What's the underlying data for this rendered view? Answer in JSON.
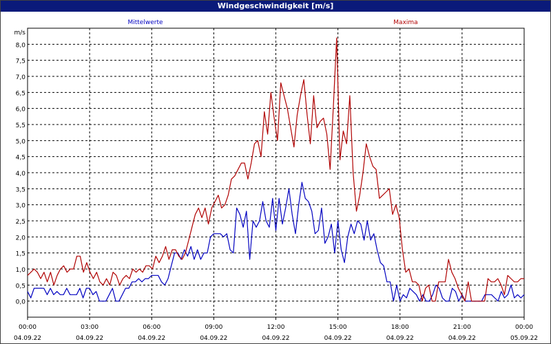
{
  "window": {
    "title": "Windgeschwindigkeit [m/s]"
  },
  "chart_data": {
    "type": "line",
    "title": "Windgeschwindigkeit [m/s]",
    "ylabel": "m/s",
    "ylim": [
      -0.5,
      8.5
    ],
    "yticks": [
      "0,0",
      "0,5",
      "1,0",
      "1,5",
      "2,0",
      "2,5",
      "3,0",
      "3,5",
      "4,0",
      "4,5",
      "5,0",
      "5,5",
      "6,0",
      "6,5",
      "7,0",
      "7,5",
      "8,0"
    ],
    "xlim": [
      0,
      24
    ],
    "xticks": [
      {
        "time": "00:00",
        "date": "04.09.22"
      },
      {
        "time": "03:00",
        "date": "04.09.22"
      },
      {
        "time": "06:00",
        "date": "04.09.22"
      },
      {
        "time": "09:00",
        "date": "04.09.22"
      },
      {
        "time": "12:00",
        "date": "04.09.22"
      },
      {
        "time": "15:00",
        "date": "04.09.22"
      },
      {
        "time": "18:00",
        "date": "04.09.22"
      },
      {
        "time": "21:00",
        "date": "04.09.22"
      },
      {
        "time": "00:00",
        "date": "05.09.22"
      }
    ],
    "grid": true,
    "series": [
      {
        "name": "Mittelwerte",
        "color": "#0000c0",
        "values": [
          0.3,
          0.1,
          0.4,
          0.4,
          0.4,
          0.4,
          0.2,
          0.4,
          0.2,
          0.3,
          0.2,
          0.2,
          0.4,
          0.2,
          0.2,
          0.2,
          0.4,
          0.1,
          0.4,
          0.4,
          0.2,
          0.3,
          0.0,
          0.0,
          0.0,
          0.2,
          0.4,
          0.0,
          0.0,
          0.2,
          0.4,
          0.4,
          0.6,
          0.6,
          0.7,
          0.6,
          0.7,
          0.7,
          0.8,
          0.8,
          0.8,
          0.6,
          0.5,
          0.7,
          1.1,
          1.5,
          1.5,
          1.3,
          1.6,
          1.4,
          1.7,
          1.3,
          1.6,
          1.3,
          1.5,
          1.5,
          2.0,
          2.1,
          2.1,
          2.1,
          2.0,
          2.1,
          1.6,
          1.5,
          2.9,
          2.7,
          2.3,
          2.8,
          1.3,
          2.5,
          2.3,
          2.5,
          3.1,
          2.5,
          2.3,
          3.2,
          2.2,
          3.2,
          2.4,
          2.9,
          3.5,
          2.7,
          2.1,
          3.0,
          3.7,
          3.2,
          3.1,
          2.8,
          2.1,
          2.2,
          2.9,
          1.8,
          2.0,
          2.4,
          1.5,
          2.5,
          1.6,
          1.2,
          2.0,
          2.4,
          2.1,
          2.5,
          2.4,
          1.9,
          2.5,
          1.9,
          2.1,
          1.6,
          1.2,
          1.1,
          0.6,
          0.6,
          0.0,
          0.5,
          0.0,
          0.2,
          0.1,
          0.4,
          0.3,
          0.2,
          0.0,
          0.2,
          0.0,
          0.0,
          0.2,
          0.5,
          0.4,
          0.1,
          0.0,
          0.0,
          0.4,
          0.3,
          0.0,
          0.2,
          0.0,
          0.0,
          0.0,
          0.0,
          0.0,
          0.0,
          0.2,
          0.2,
          0.2,
          0.1,
          0.0,
          0.3,
          0.1,
          0.2,
          0.5,
          0.1,
          0.2,
          0.1,
          0.2
        ]
      },
      {
        "name": "Maxima",
        "color": "#b00000",
        "values": [
          0.8,
          0.9,
          1.0,
          0.9,
          0.7,
          0.9,
          0.6,
          0.9,
          0.5,
          0.8,
          1.0,
          1.1,
          0.9,
          1.0,
          1.0,
          1.4,
          1.4,
          0.9,
          1.2,
          0.9,
          0.7,
          0.9,
          0.6,
          0.5,
          0.7,
          0.5,
          0.9,
          0.8,
          0.5,
          0.7,
          0.8,
          0.7,
          1.0,
          0.9,
          1.0,
          0.9,
          1.1,
          1.1,
          1.0,
          1.4,
          1.2,
          1.4,
          1.7,
          1.3,
          1.6,
          1.6,
          1.4,
          1.3,
          1.5,
          1.9,
          2.3,
          2.7,
          2.9,
          2.6,
          2.9,
          2.4,
          2.9,
          3.1,
          3.3,
          2.9,
          3.0,
          3.3,
          3.8,
          3.9,
          4.1,
          4.3,
          4.3,
          3.8,
          4.3,
          4.9,
          5.0,
          4.5,
          5.9,
          5.2,
          6.5,
          5.7,
          5.0,
          6.8,
          6.4,
          6.0,
          5.4,
          4.8,
          5.8,
          6.4,
          6.9,
          5.8,
          4.9,
          6.4,
          5.4,
          5.6,
          5.7,
          5.2,
          4.1,
          6.1,
          8.2,
          4.4,
          5.3,
          4.9,
          6.4,
          4.0,
          2.8,
          3.3,
          4.0,
          4.9,
          4.5,
          4.2,
          4.1,
          3.2,
          3.3,
          3.4,
          3.5,
          2.7,
          3.0,
          2.6,
          1.6,
          0.9,
          1.0,
          0.6,
          0.6,
          0.5,
          0.0,
          0.4,
          0.5,
          0.0,
          0.0,
          0.6,
          0.6,
          0.6,
          1.3,
          0.9,
          0.7,
          0.4,
          0.2,
          0.0,
          0.6,
          0.0,
          0.0,
          0.0,
          0.0,
          0.0,
          0.7,
          0.6,
          0.6,
          0.7,
          0.5,
          0.2,
          0.8,
          0.7,
          0.6,
          0.6,
          0.7,
          0.7
        ]
      }
    ]
  }
}
